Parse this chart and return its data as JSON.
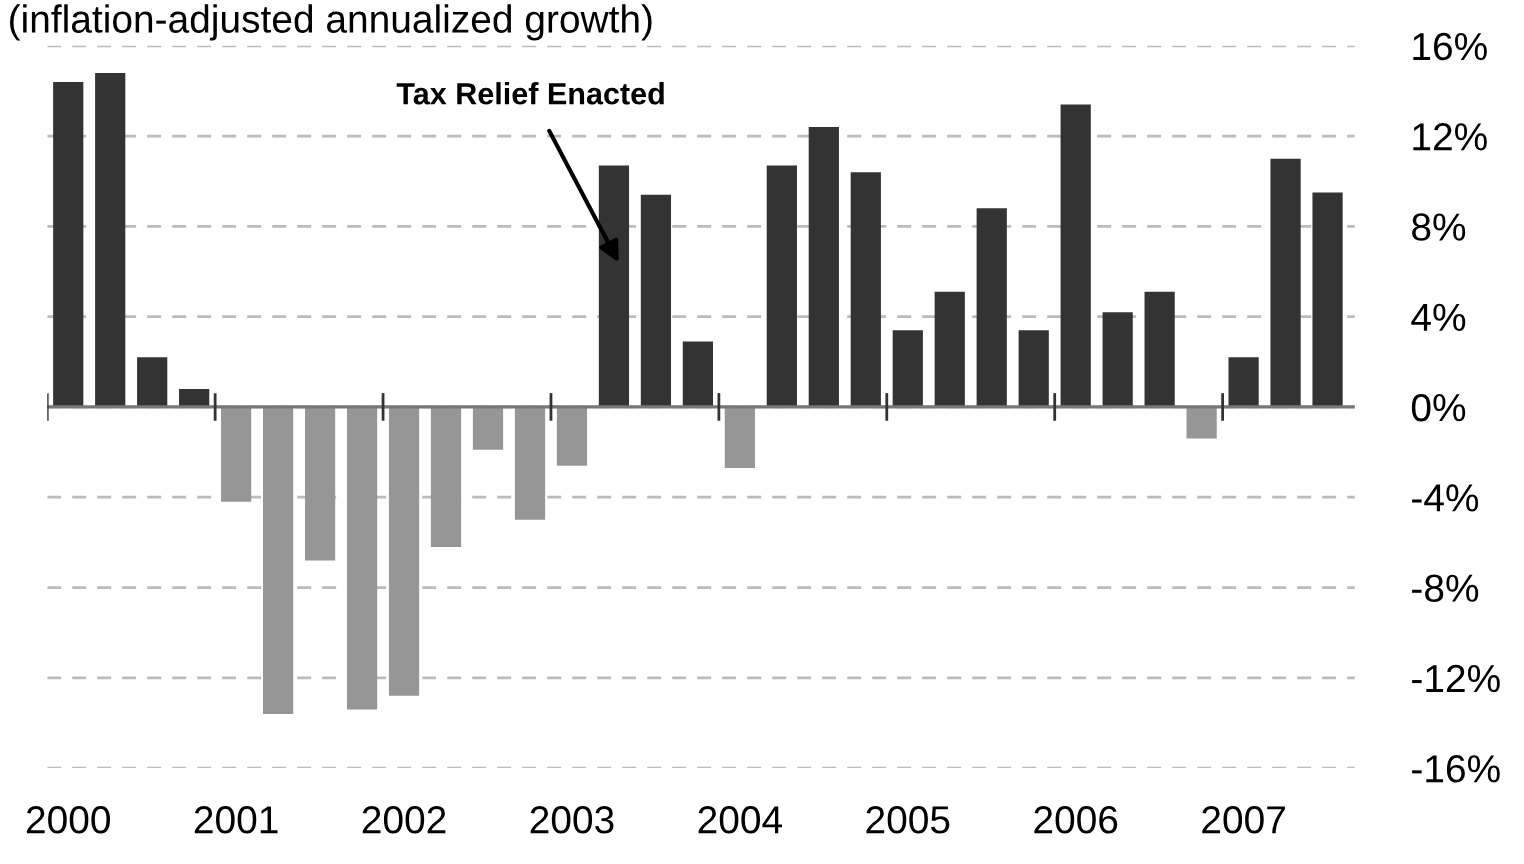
{
  "chart_data": {
    "type": "bar",
    "title": "(inflation-adjusted annualized growth)",
    "categories": [
      "2000",
      null,
      null,
      null,
      "2001",
      null,
      null,
      null,
      "2002",
      null,
      null,
      null,
      "2003",
      null,
      null,
      null,
      "2004",
      null,
      null,
      null,
      "2005",
      null,
      null,
      null,
      "2006",
      null,
      null,
      null,
      "2007",
      null,
      null
    ],
    "values": [
      14.4,
      14.8,
      2.2,
      0.8,
      -4.2,
      -13.6,
      -6.8,
      -13.4,
      -12.8,
      -6.2,
      -1.9,
      -5.0,
      -2.6,
      10.7,
      9.4,
      2.9,
      -2.7,
      10.7,
      12.4,
      10.4,
      3.4,
      5.1,
      8.8,
      3.4,
      13.4,
      4.2,
      5.1,
      -1.4,
      2.2,
      11.0,
      9.5
    ],
    "colors": [
      "#333333",
      "#333333",
      "#333333",
      "#333333",
      "#969696",
      "#969696",
      "#969696",
      "#969696",
      "#969696",
      "#969696",
      "#969696",
      "#969696",
      "#969696",
      "#333333",
      "#333333",
      "#333333",
      "#969696",
      "#333333",
      "#333333",
      "#333333",
      "#333333",
      "#333333",
      "#333333",
      "#333333",
      "#333333",
      "#333333",
      "#333333",
      "#969696",
      "#333333",
      "#333333",
      "#333333"
    ],
    "ylim": [
      -16,
      16
    ],
    "yticks": [
      {
        "value": 16,
        "label": "16%"
      },
      {
        "value": 12,
        "label": "12%"
      },
      {
        "value": 8,
        "label": "8%"
      },
      {
        "value": 4,
        "label": "4%"
      },
      {
        "value": 0,
        "label": "0%"
      },
      {
        "value": -4,
        "label": "-4%"
      },
      {
        "value": -8,
        "label": "-8%"
      },
      {
        "value": -12,
        "label": "-12%"
      },
      {
        "value": -16,
        "label": "-16%"
      }
    ],
    "grid": "y",
    "annotations": [
      "Tax Relief Enacted"
    ]
  }
}
